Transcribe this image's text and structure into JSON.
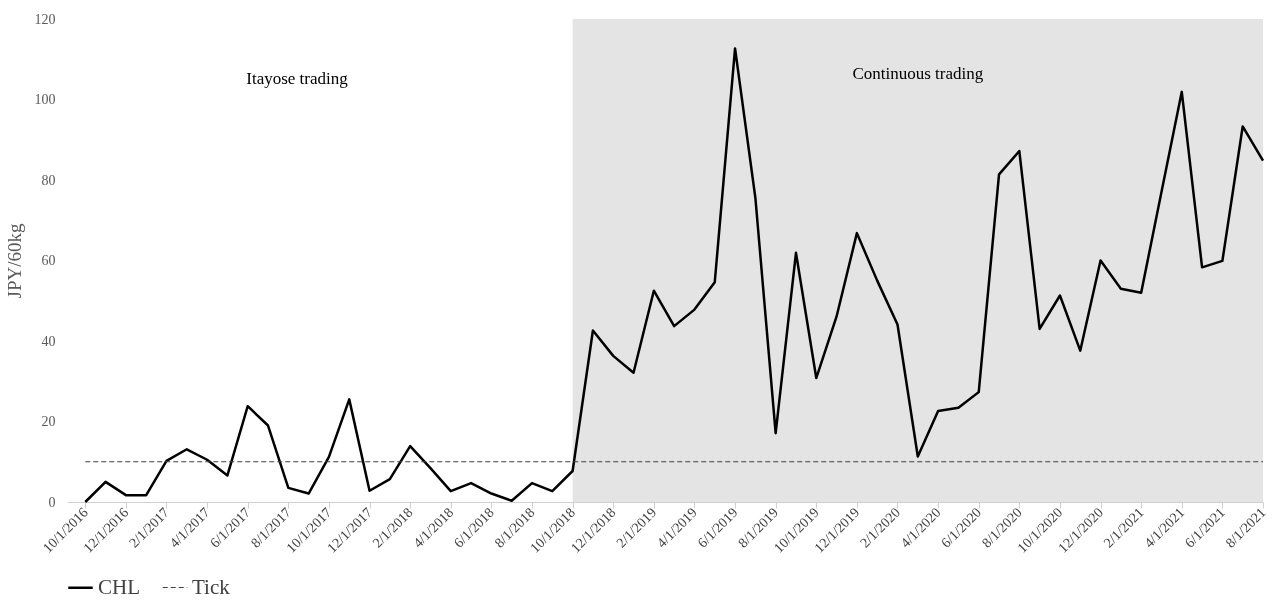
{
  "chart_data": {
    "type": "line",
    "ylabel": "JPY/60kg",
    "categories": [
      "10/1/2016",
      null,
      "12/1/2016",
      null,
      "2/1/2017",
      null,
      "4/1/2017",
      null,
      "6/1/2017",
      null,
      "8/1/2017",
      null,
      "10/1/2017",
      null,
      "12/1/2017",
      null,
      "2/1/2018",
      null,
      "4/1/2018",
      null,
      "6/1/2018",
      null,
      "8/1/2018",
      null,
      "10/1/2018",
      null,
      "12/1/2018",
      null,
      "2/1/2019",
      null,
      "4/1/2019",
      null,
      "6/1/2019",
      null,
      "8/1/2019",
      null,
      "10/1/2019",
      null,
      "12/1/2019",
      null,
      "2/1/2020",
      null,
      "4/1/2020",
      null,
      "6/1/2020",
      null,
      "8/1/2020",
      null,
      "10/1/2020",
      null,
      "12/1/2020",
      null,
      "2/1/2021",
      null,
      "4/1/2021",
      null,
      "6/1/2021",
      null,
      "8/1/2021"
    ],
    "series": [
      {
        "name": "CHL",
        "color": "#000000",
        "line_style": "solid",
        "values": [
          0,
          5,
          1.7,
          1.7,
          10.2,
          13.1,
          10.5,
          6.6,
          23.8,
          19,
          3.5,
          2.1,
          11.2,
          25.5,
          2.8,
          5.7,
          13.9,
          8.4,
          2.7,
          4.7,
          2.1,
          0.3,
          4.7,
          2.7,
          7.7,
          42.6,
          36.3,
          32.1,
          52.5,
          43.7,
          47.8,
          54.6,
          112.7,
          75.6,
          17.1,
          61.9,
          30.8,
          46.1,
          66.8,
          55,
          44.1,
          11.3,
          22.6,
          23.4,
          27.3,
          81.4,
          87.2,
          43,
          51.3,
          37.6,
          60,
          53,
          52,
          77,
          101.9,
          58.3,
          59.9,
          93.3,
          84.8
        ]
      },
      {
        "name": "Tick",
        "color": "#404040",
        "line_style": "dashed",
        "values": [
          10,
          10,
          10,
          10,
          10,
          10,
          10,
          10,
          10,
          10,
          10,
          10,
          10,
          10,
          10,
          10,
          10,
          10,
          10,
          10,
          10,
          10,
          10,
          10,
          10,
          10,
          10,
          10,
          10,
          10,
          10,
          10,
          10,
          10,
          10,
          10,
          10,
          10,
          10,
          10,
          10,
          10,
          10,
          10,
          10,
          10,
          10,
          10,
          10,
          10,
          10,
          10,
          10,
          10,
          10,
          10,
          10,
          10,
          10
        ]
      }
    ],
    "bands": [
      {
        "axis": "x",
        "from": "10/1/2018",
        "to": "8/1/2021",
        "label": "Continuous trading",
        "color": "#e4e4e4"
      }
    ],
    "annotations": [
      "Itayose trading"
    ],
    "ylim": [
      0,
      120
    ],
    "yticks": [
      0,
      20,
      40,
      60,
      80,
      100,
      120
    ],
    "grid": false,
    "legend": "bottom"
  }
}
